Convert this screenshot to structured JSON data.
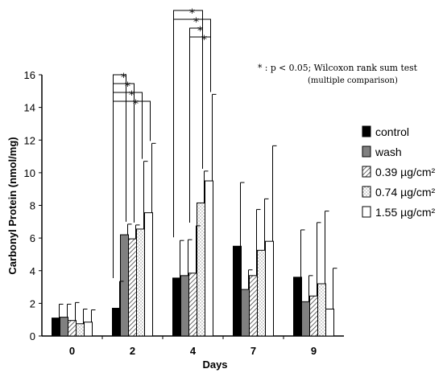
{
  "chart_data": {
    "type": "bar",
    "xlabel": "Days",
    "ylabel": "Carbonyl Protein (nmol/mg)",
    "categories": [
      "0",
      "2",
      "4",
      "7",
      "9"
    ],
    "ylim": [
      0,
      16
    ],
    "yticks": [
      "0",
      "2",
      "4",
      "6",
      "8",
      "10",
      "12",
      "14",
      "16"
    ],
    "grid": false,
    "legend_position": "right",
    "series": [
      {
        "name": "control",
        "pattern": "solid-black",
        "values": [
          1.1,
          1.7,
          3.55,
          5.5,
          3.6
        ],
        "err": [
          0.85,
          1.65,
          2.3,
          3.9,
          2.9
        ]
      },
      {
        "name": "wash",
        "pattern": "solid-gray",
        "values": [
          1.15,
          6.2,
          3.7,
          2.85,
          2.1
        ],
        "err": [
          0.8,
          0.65,
          2.2,
          1.2,
          1.6
        ]
      },
      {
        "name": "0.39 µg/cm²",
        "pattern": "diagonal-hatch",
        "values": [
          0.95,
          5.95,
          3.85,
          3.7,
          2.45
        ],
        "err": [
          1.1,
          0.85,
          2.9,
          4.05,
          4.5
        ]
      },
      {
        "name": "0.74 µg/cm²",
        "pattern": "dotted",
        "values": [
          0.75,
          6.55,
          8.15,
          5.25,
          3.2
        ],
        "err": [
          0.9,
          4.15,
          1.95,
          3.15,
          4.45
        ]
      },
      {
        "name": "1.55 µg/cm²",
        "pattern": "white",
        "values": [
          0.85,
          7.55,
          9.5,
          5.8,
          1.65
        ],
        "err": [
          0.75,
          4.25,
          5.3,
          5.85,
          2.5
        ]
      }
    ],
    "annotation": {
      "line1": "* : p < 0.05; Wilcoxon rank sum test",
      "line2": "(multiple comparison)",
      "star": "*"
    },
    "significance": [
      {
        "category": "2",
        "from": "control",
        "to": [
          "wash",
          "0.39 µg/cm²",
          "0.74 µg/cm²",
          "1.55 µg/cm²"
        ]
      },
      {
        "category": "4",
        "from": "control",
        "to": [
          "0.74 µg/cm²",
          "1.55 µg/cm²"
        ]
      },
      {
        "category": "4",
        "from": "0.39 µg/cm²",
        "to": [
          "0.74 µg/cm²",
          "1.55 µg/cm²"
        ]
      }
    ]
  },
  "colors": {
    "control": "#000000",
    "wash": "#808080",
    "axis": "#000000",
    "pattern_stroke": "#555555"
  }
}
